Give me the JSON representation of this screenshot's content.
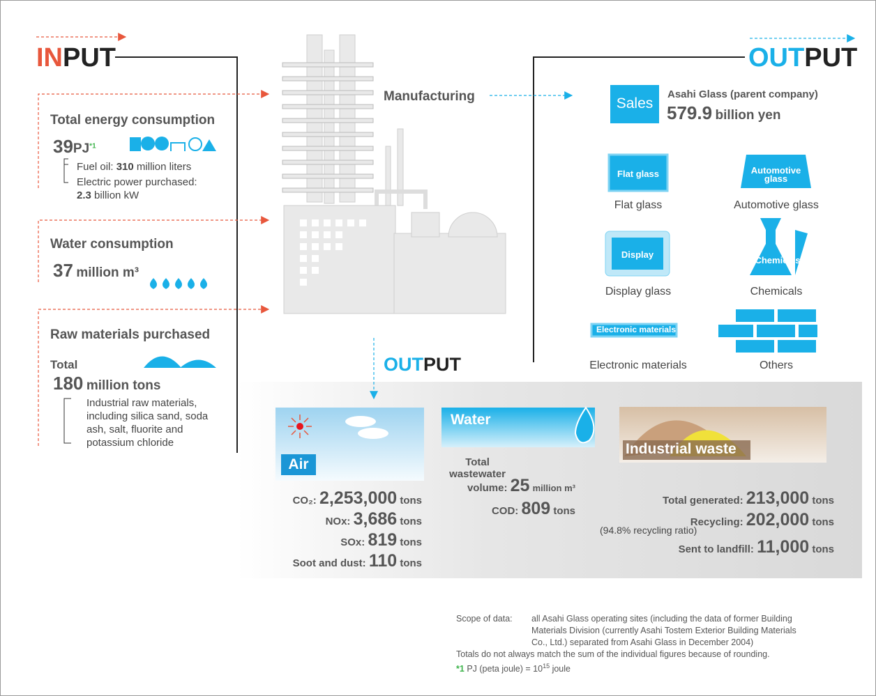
{
  "input": {
    "title_accent": "IN",
    "title_rest": "PUT",
    "energy": {
      "heading": "Total energy consumption",
      "value": "39",
      "unit": "PJ",
      "note_mark": "*1",
      "items": [
        {
          "label": "Fuel oil:",
          "value": "310",
          "unit": "million liters"
        },
        {
          "label": "Electric power purchased:",
          "value": "2.3",
          "unit": "billion kW"
        }
      ]
    },
    "water": {
      "heading": "Water consumption",
      "value": "37",
      "unit": "million m³"
    },
    "raw": {
      "heading": "Raw materials purchased",
      "label": "Total",
      "value": "180",
      "unit": "million tons",
      "detail": [
        "Industrial raw materials,",
        "including silica sand, soda",
        "ash, salt, fluorite and",
        "potassium chloride"
      ]
    }
  },
  "process": {
    "label": "Manufacturing"
  },
  "output_products": {
    "title_accent": "OUT",
    "title_rest": "PUT",
    "sales": {
      "badge": "Sales",
      "company": "Asahi Glass (parent company)",
      "value": "579.9",
      "unit": "billion yen"
    },
    "products": [
      {
        "icon": "Flat glass",
        "caption": "Flat glass"
      },
      {
        "icon": "Automotive glass",
        "caption": "Automotive glass"
      },
      {
        "icon": "Display",
        "caption": "Display glass"
      },
      {
        "icon": "Chemicals",
        "caption": "Chemicals"
      },
      {
        "icon": "Electronic materials",
        "caption": "Electronic materials"
      },
      {
        "caption": "Others"
      }
    ]
  },
  "output_emissions": {
    "title_accent": "OUT",
    "title_rest": "PUT",
    "air": {
      "title": "Air",
      "rows": [
        {
          "label": "CO₂:",
          "value": "2,253,000",
          "unit": "tons"
        },
        {
          "label": "NOx:",
          "value": "3,686",
          "unit": "tons"
        },
        {
          "label": "SOx:",
          "value": "819",
          "unit": "tons"
        },
        {
          "label": "Soot and dust:",
          "value": "110",
          "unit": "tons"
        }
      ]
    },
    "water": {
      "title": "Water",
      "rows": [
        {
          "label": [
            "Total",
            "wastewater",
            "volume:"
          ],
          "value": "25",
          "unit": "million m³"
        },
        {
          "label": "COD:",
          "value": "809",
          "unit": "tons"
        }
      ]
    },
    "waste": {
      "title": "Industrial waste",
      "rows": [
        {
          "label": "Total generated:",
          "value": "213,000",
          "unit": "tons"
        },
        {
          "label": "Recycling:",
          "value": "202,000",
          "unit": "tons",
          "note": "(94.8% recycling ratio)"
        },
        {
          "label": "Sent to landfill:",
          "value": "11,000",
          "unit": "tons"
        }
      ]
    }
  },
  "footnotes": {
    "scope_label": "Scope of data:",
    "scope_text": [
      "all Asahi Glass operating sites (including the data of former Building",
      "Materials Division (currently Asahi Tostem Exterior Building Materials",
      "Co., Ltd.)  separated from Asahi Glass in December 2004)"
    ],
    "rounding": "Totals do not always match the sum of the individual figures because of rounding.",
    "mark": "*1",
    "definition": "PJ (peta joule) = 10",
    "exponent": "15",
    "definition_end": "joule"
  }
}
